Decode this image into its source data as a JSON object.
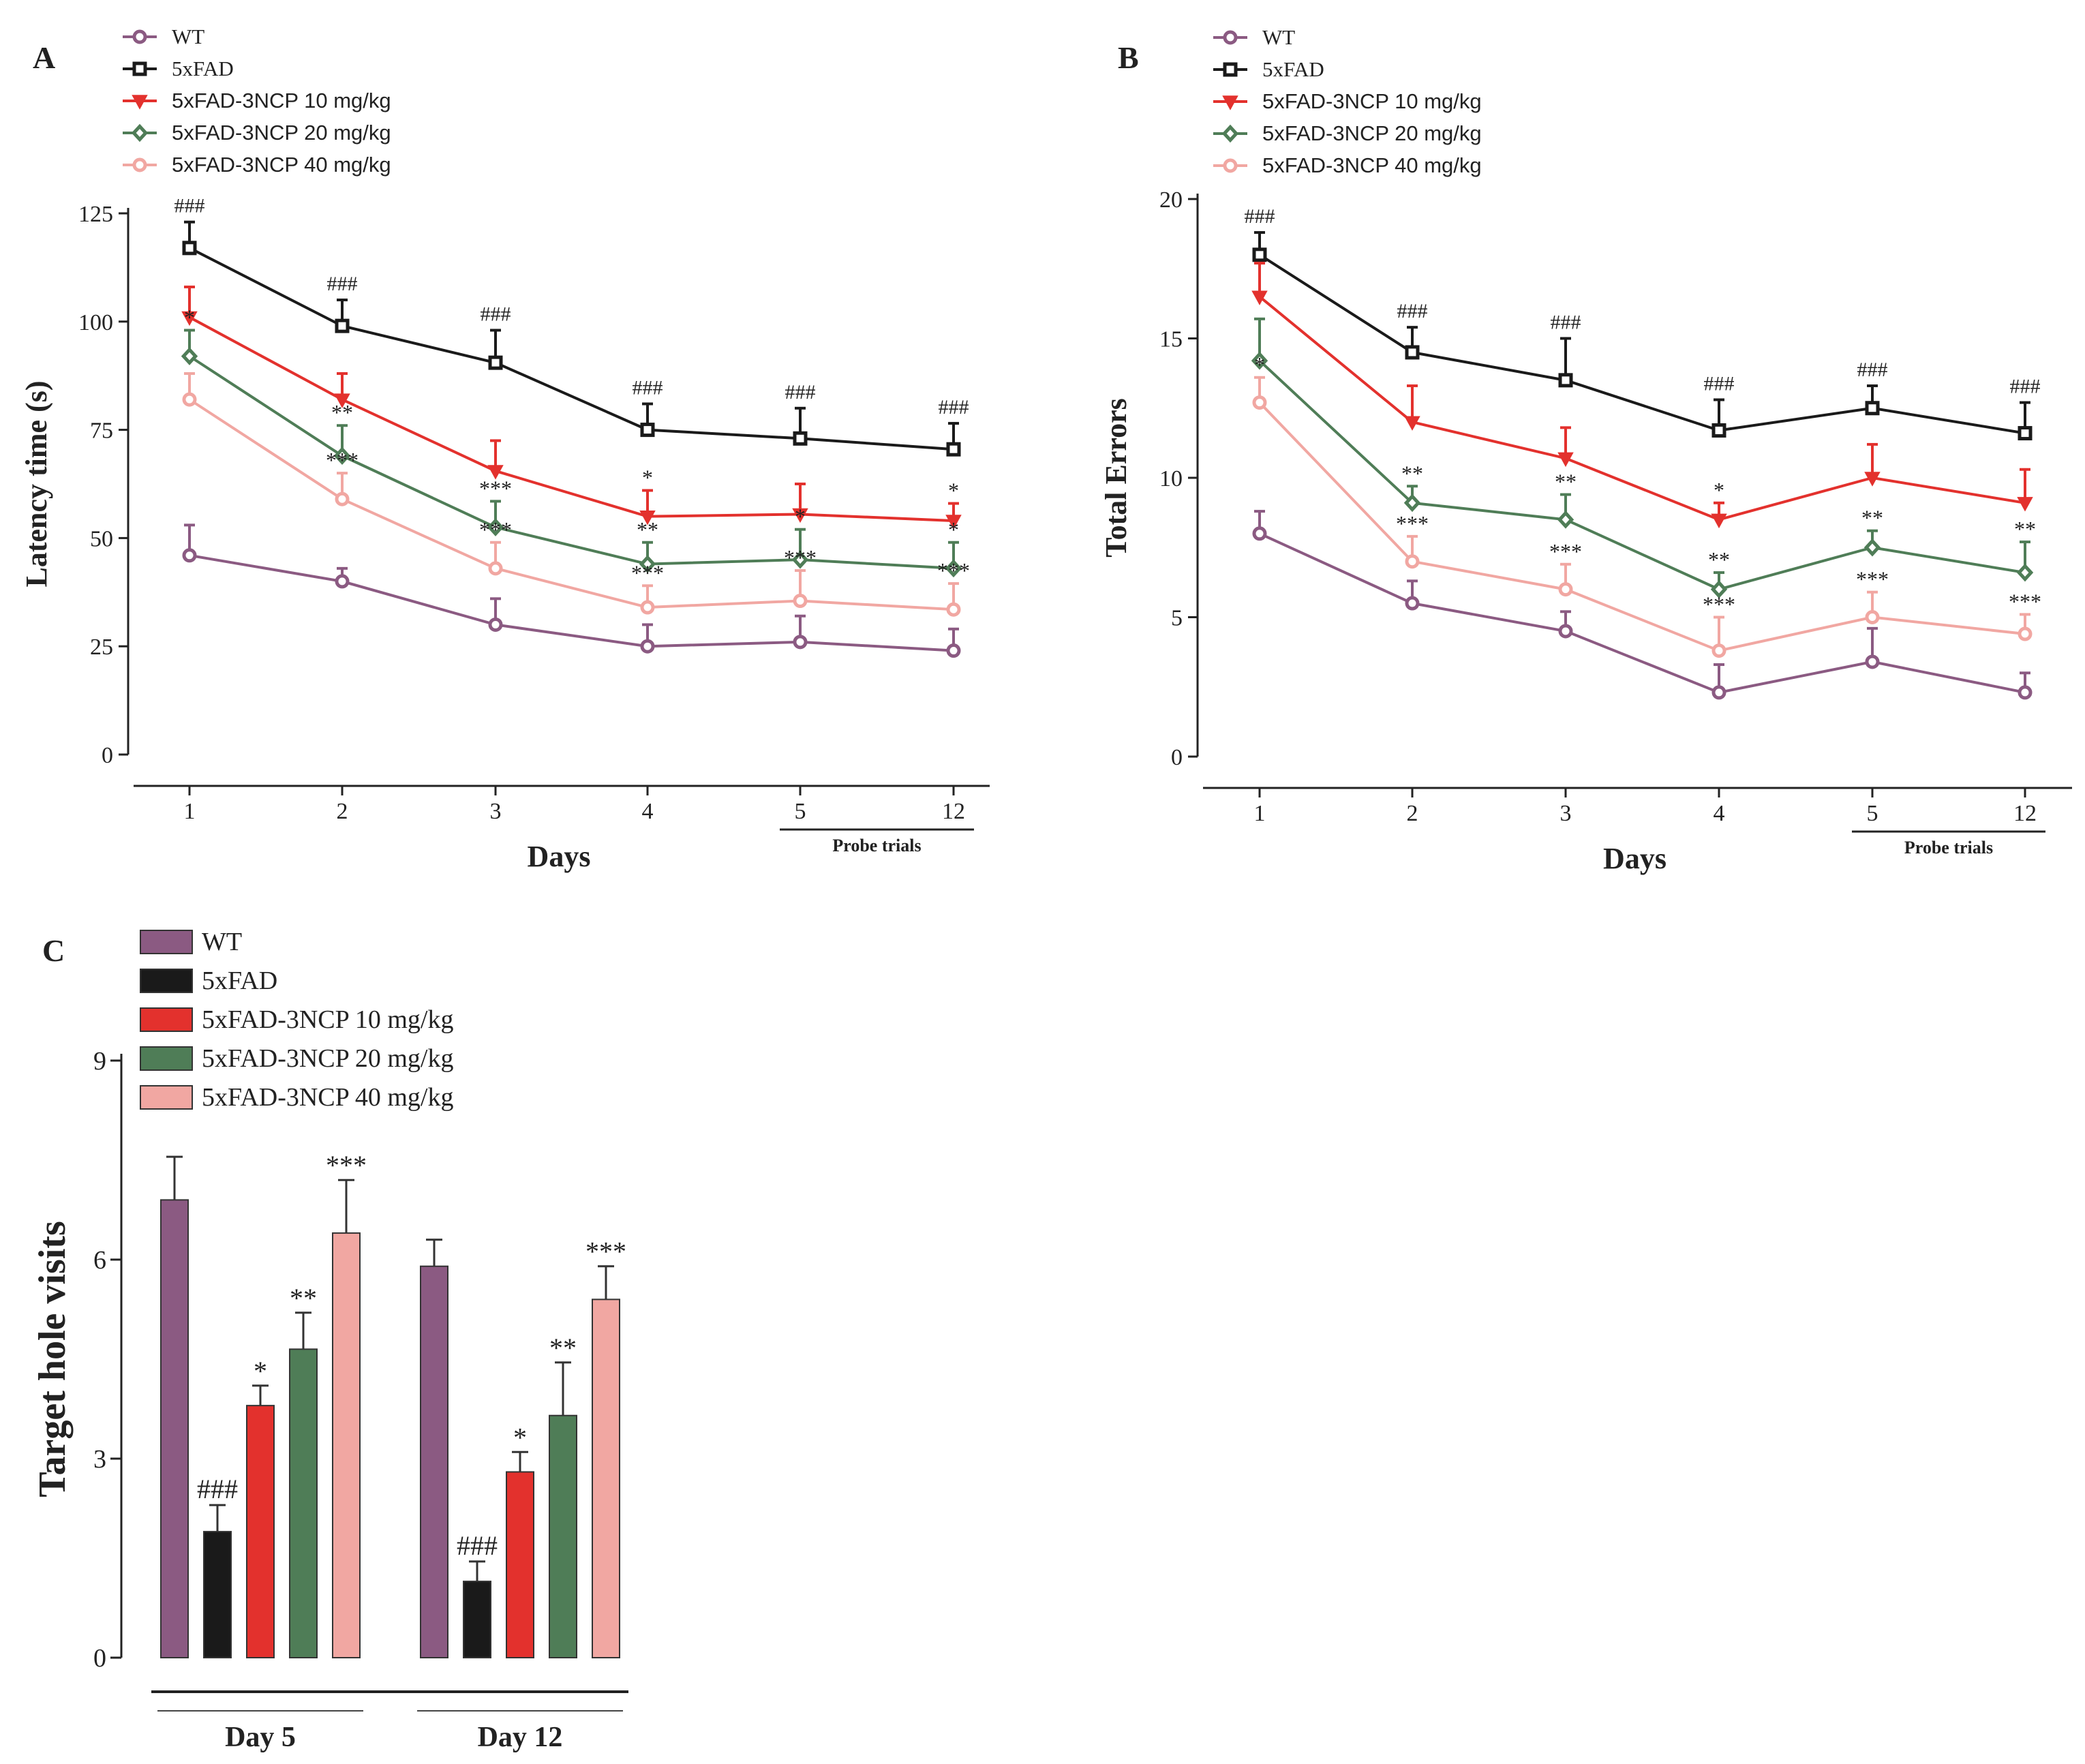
{
  "colors": {
    "WT": "#8b5a82",
    "5xFAD": "#1a1a1a",
    "10mg": "#e3312d",
    "20mg": "#4f7d57",
    "40mg": "#f1a7a2"
  },
  "series_meta": [
    {
      "key": "WT",
      "name": "WT",
      "marker": "circle"
    },
    {
      "key": "5xFAD",
      "name": "5xFAD",
      "marker": "square"
    },
    {
      "key": "10mg",
      "name": "5xFAD-3NCP 10 mg/kg",
      "marker": "triangle-down"
    },
    {
      "key": "20mg",
      "name": "5xFAD-3NCP 20 mg/kg",
      "marker": "diamond"
    },
    {
      "key": "40mg",
      "name": "5xFAD-3NCP 40 mg/kg",
      "marker": "circle"
    }
  ],
  "chart_data": [
    {
      "id": "A",
      "panel_label": "A",
      "type": "line",
      "xlabel": "Days",
      "ylabel": "Latency time (s)",
      "categories": [
        "1",
        "2",
        "3",
        "4",
        "5",
        "12"
      ],
      "probe_label": "Probe trials",
      "ylim": [
        0,
        125
      ],
      "yticks": [
        0,
        25,
        50,
        75,
        100,
        125
      ],
      "legend_position": "top-left",
      "series": [
        {
          "key": "WT",
          "values": [
            46,
            40,
            30,
            25,
            26,
            24
          ],
          "err": [
            7,
            3,
            6,
            5,
            6,
            5
          ],
          "sig": [
            "",
            "",
            "",
            "",
            "",
            ""
          ]
        },
        {
          "key": "5xFAD",
          "values": [
            117,
            99,
            90.5,
            75,
            73,
            70.5
          ],
          "err": [
            6,
            6,
            7.5,
            6,
            7,
            6
          ],
          "sig": [
            "###",
            "###",
            "###",
            "###",
            "###",
            "###"
          ]
        },
        {
          "key": "10mg",
          "values": [
            101,
            82,
            65.5,
            55,
            55.5,
            54
          ],
          "err": [
            7,
            6,
            7,
            6,
            7,
            4
          ],
          "sig": [
            "",
            "",
            "",
            "*",
            "",
            "*"
          ]
        },
        {
          "key": "20mg",
          "values": [
            92,
            69,
            52.5,
            44,
            45,
            43
          ],
          "err": [
            6,
            7,
            6,
            5,
            7,
            6
          ],
          "sig": [
            "*",
            "**",
            "***",
            "**",
            "*",
            "*"
          ]
        },
        {
          "key": "40mg",
          "values": [
            82,
            59,
            43,
            34,
            35.5,
            33.5
          ],
          "err": [
            6,
            6,
            6,
            5,
            7,
            6
          ],
          "sig": [
            "",
            "***",
            "***",
            "***",
            "***",
            "***"
          ]
        }
      ]
    },
    {
      "id": "B",
      "panel_label": "B",
      "type": "line",
      "xlabel": "Days",
      "ylabel": "Total Errors",
      "categories": [
        "1",
        "2",
        "3",
        "4",
        "5",
        "12"
      ],
      "probe_label": "Probe trials",
      "ylim": [
        0,
        20
      ],
      "yticks": [
        0,
        5,
        10,
        15,
        20
      ],
      "legend_position": "top-left",
      "series": [
        {
          "key": "WT",
          "values": [
            8,
            5.5,
            4.5,
            2.3,
            3.4,
            2.3
          ],
          "err": [
            0.8,
            0.8,
            0.7,
            1.0,
            1.2,
            0.7
          ],
          "sig": [
            "",
            "",
            "",
            "",
            "",
            ""
          ]
        },
        {
          "key": "5xFAD",
          "values": [
            18,
            14.5,
            13.5,
            11.7,
            12.5,
            11.6
          ],
          "err": [
            0.8,
            0.9,
            1.5,
            1.1,
            0.8,
            1.1
          ],
          "sig": [
            "###",
            "###",
            "###",
            "###",
            "###",
            "###"
          ]
        },
        {
          "key": "10mg",
          "values": [
            16.5,
            12,
            10.7,
            8.5,
            10,
            9.1
          ],
          "err": [
            1.2,
            1.3,
            1.1,
            0.6,
            1.2,
            1.2
          ],
          "sig": [
            "",
            "",
            "",
            "*",
            "",
            ""
          ]
        },
        {
          "key": "20mg",
          "values": [
            14.2,
            9.1,
            8.5,
            6.0,
            7.5,
            6.6
          ],
          "err": [
            1.5,
            0.6,
            0.9,
            0.6,
            0.6,
            1.1
          ],
          "sig": [
            "",
            "**",
            "**",
            "**",
            "**",
            "**"
          ]
        },
        {
          "key": "40mg",
          "values": [
            12.7,
            7,
            6,
            3.8,
            5,
            4.4
          ],
          "err": [
            0.9,
            0.9,
            0.9,
            1.2,
            0.9,
            0.7
          ],
          "sig": [
            "*",
            "***",
            "***",
            "***",
            "***",
            "***"
          ]
        }
      ]
    },
    {
      "id": "C",
      "panel_label": "C",
      "type": "bar",
      "ylabel": "Target hole visits",
      "categories": [
        "Day 5",
        "Day 12"
      ],
      "ylim": [
        0,
        9
      ],
      "yticks": [
        0,
        3,
        6,
        9
      ],
      "legend_position": "top-left",
      "series": [
        {
          "key": "WT",
          "values": [
            6.9,
            5.9
          ],
          "err": [
            0.65,
            0.4
          ],
          "sig": [
            "",
            ""
          ]
        },
        {
          "key": "5xFAD",
          "values": [
            1.9,
            1.15
          ],
          "err": [
            0.4,
            0.3
          ],
          "sig": [
            "###",
            "###"
          ]
        },
        {
          "key": "10mg",
          "values": [
            3.8,
            2.8
          ],
          "err": [
            0.3,
            0.3
          ],
          "sig": [
            "*",
            "*"
          ]
        },
        {
          "key": "20mg",
          "values": [
            4.65,
            3.65
          ],
          "err": [
            0.55,
            0.8
          ],
          "sig": [
            "**",
            "**"
          ]
        },
        {
          "key": "40mg",
          "values": [
            6.4,
            5.4
          ],
          "err": [
            0.8,
            0.5
          ],
          "sig": [
            "***",
            "***"
          ]
        }
      ]
    }
  ]
}
